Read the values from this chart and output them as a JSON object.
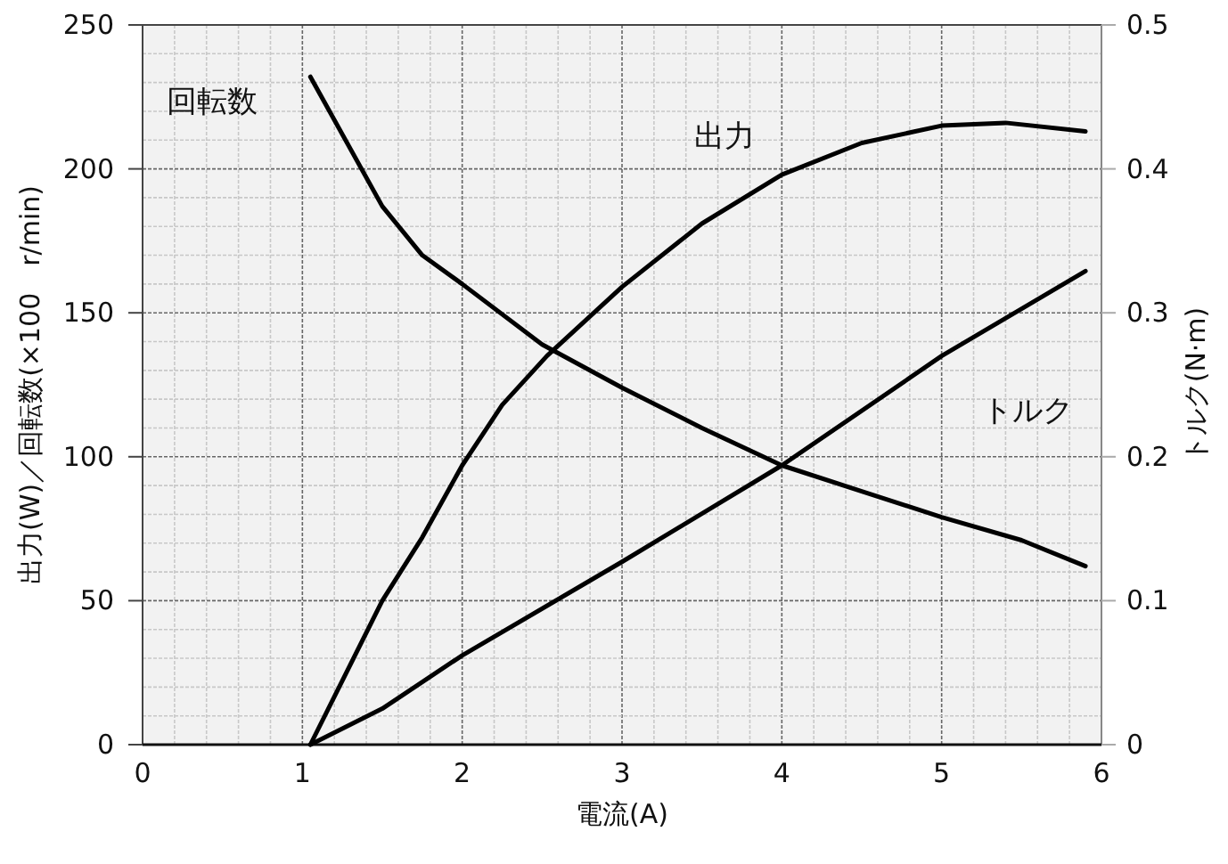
{
  "chart_data": {
    "type": "line",
    "xlabel": "電流(A)",
    "ylabel": "出力(W)／回転数(×100　r/min)",
    "y2label": "トルク(N·m)",
    "xlim": [
      0,
      6
    ],
    "xticks": [
      0,
      1,
      2,
      3,
      4,
      5,
      6
    ],
    "ylim": [
      0,
      250
    ],
    "yticks": [
      0,
      50,
      100,
      150,
      200,
      250
    ],
    "y2lim": [
      0,
      0.5
    ],
    "y2ticks": [
      0,
      0.1,
      0.2,
      0.3,
      0.4,
      0.5
    ],
    "grid": true,
    "marker": "none",
    "line_style": "solid",
    "series": [
      {
        "name": "回転数",
        "color": "#000000",
        "x": [
          1.05,
          1.5,
          1.75,
          2,
          2.5,
          3,
          3.5,
          4,
          4.5,
          5,
          5.5,
          5.9
        ],
        "values": [
          232,
          187,
          170,
          160,
          139,
          124,
          110,
          97,
          88,
          79,
          71,
          62
        ]
      },
      {
        "name": "出力",
        "color": "#000000",
        "x": [
          1.05,
          1.5,
          1.75,
          2,
          2.25,
          2.53,
          3,
          3.5,
          4,
          4.5,
          5,
          5.4,
          5.9
        ],
        "values": [
          0,
          50,
          72,
          97,
          118,
          135,
          159,
          181,
          198,
          209,
          215,
          216,
          213
        ]
      },
      {
        "name": "トルク",
        "color": "#000000",
        "axis": "y2",
        "x": [
          1.05,
          1.5,
          2,
          3,
          4,
          5,
          5.9
        ],
        "values": [
          0,
          0.025,
          0.062,
          0.127,
          0.194,
          0.27,
          0.329
        ]
      }
    ]
  }
}
